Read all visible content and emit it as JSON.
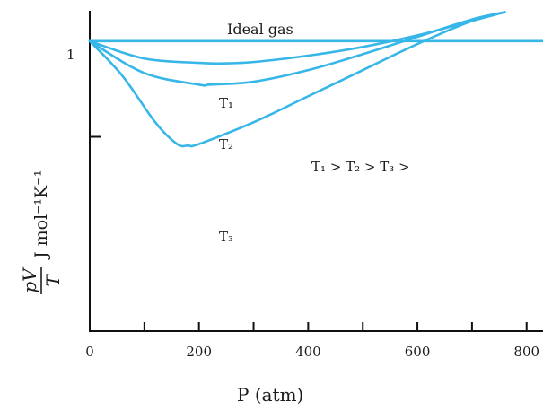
{
  "chart_data": {
    "type": "line",
    "xlabel": "P (atm)",
    "ylabel": "pV/T J mol⁻¹K⁻¹",
    "xlim": [
      0,
      830
    ],
    "ylim": [
      0.0,
      1.08
    ],
    "x_ticks": [
      0,
      200,
      400,
      600,
      800
    ],
    "y_ticks": [
      {
        "value": 1.0,
        "label": "1"
      },
      {
        "value": 0.67,
        "label": ""
      }
    ],
    "line_color": "#37b6e8",
    "legend_text": "T₁ > T₂ > T₃ >",
    "series": [
      {
        "name": "Ideal gas",
        "x": [
          0,
          830
        ],
        "y": [
          1.0,
          1.0
        ]
      },
      {
        "name": "T₁",
        "x": [
          0,
          100,
          200,
          240,
          300,
          400,
          500,
          600,
          700,
          760
        ],
        "y": [
          1.0,
          0.94,
          0.925,
          0.923,
          0.928,
          0.95,
          0.98,
          1.02,
          1.07,
          1.1
        ]
      },
      {
        "name": "T₂",
        "x": [
          0,
          100,
          200,
          220,
          300,
          400,
          500,
          600,
          700,
          760
        ],
        "y": [
          1.0,
          0.89,
          0.85,
          0.85,
          0.86,
          0.9,
          0.955,
          1.015,
          1.075,
          1.1
        ]
      },
      {
        "name": "T₃",
        "x": [
          0,
          60,
          120,
          160,
          180,
          200,
          300,
          400,
          500,
          600,
          700,
          760
        ],
        "y": [
          1.0,
          0.88,
          0.72,
          0.645,
          0.64,
          0.645,
          0.72,
          0.81,
          0.9,
          0.99,
          1.07,
          1.1
        ]
      }
    ]
  },
  "labels": {
    "ideal": "Ideal gas",
    "t1": "T₁",
    "t2": "T₂",
    "t3": "T₃",
    "order": "T₁ > T₂ > T₃ >",
    "y_tick_1": "1",
    "xlabel": "P (atm)",
    "ylabel_frac_num": "pV",
    "ylabel_frac_den": "T",
    "ylabel_units": "J mol⁻¹K⁻¹"
  },
  "x_tick_labels": [
    "0",
    "200",
    "400",
    "600",
    "800"
  ]
}
